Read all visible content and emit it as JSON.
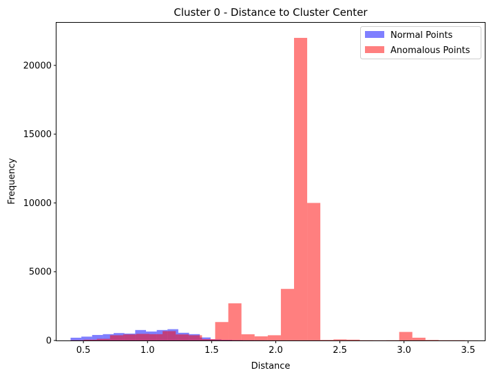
{
  "chart_data": {
    "type": "bar",
    "title": "Cluster 0 - Distance to Cluster Center",
    "xlabel": "Distance",
    "ylabel": "Frequency",
    "xlim": [
      0.29,
      3.63
    ],
    "ylim": [
      0,
      23100
    ],
    "xticks": [
      0.5,
      1.0,
      1.5,
      2.0,
      2.5,
      3.0,
      3.5
    ],
    "xtick_labels": [
      "0.5",
      "1.0",
      "1.5",
      "2.0",
      "2.5",
      "3.0",
      "3.5"
    ],
    "yticks": [
      0,
      5000,
      10000,
      15000,
      20000
    ],
    "ytick_labels": [
      "0",
      "5000",
      "10000",
      "15000",
      "20000"
    ],
    "grid": false,
    "legend_position": "top-right",
    "series": [
      {
        "name": "Normal Points",
        "color": "#0000ff",
        "opacity": 0.5,
        "bin_edges": [
          0.4,
          0.484,
          0.568,
          0.652,
          0.736,
          0.82,
          0.904,
          0.988,
          1.072,
          1.156,
          1.24,
          1.324,
          1.408,
          1.492,
          1.576,
          1.66,
          1.744,
          1.828,
          1.912,
          1.996,
          2.08,
          2.164,
          2.248,
          2.332,
          2.416,
          2.5,
          2.584,
          2.668,
          2.752,
          2.836,
          2.92,
          3.004,
          3.088,
          3.172,
          3.256,
          3.34
        ],
        "counts": [
          200,
          280,
          400,
          460,
          540,
          500,
          760,
          650,
          760,
          820,
          560,
          460,
          220,
          80,
          50,
          30,
          20,
          15,
          10,
          8,
          6,
          5,
          5,
          4,
          3,
          3,
          2,
          2,
          2,
          1,
          1,
          1,
          1,
          1,
          0
        ]
      },
      {
        "name": "Anomalous Points",
        "color": "#ff0000",
        "opacity": 0.5,
        "bin_edges": [
          0.4,
          0.5025,
          0.605,
          0.7075,
          0.81,
          0.9125,
          1.015,
          1.1175,
          1.22,
          1.3225,
          1.425,
          1.5275,
          1.63,
          1.7325,
          1.835,
          1.9375,
          2.04,
          2.1425,
          2.245,
          2.3475,
          2.45,
          2.5525,
          2.655,
          2.7575,
          2.86,
          2.9625,
          3.065,
          3.1675,
          3.27,
          3.3725,
          3.475,
          3.5775
        ],
        "counts": [
          20,
          60,
          120,
          380,
          440,
          480,
          460,
          680,
          440,
          380,
          100,
          1340,
          2700,
          450,
          300,
          380,
          3750,
          22000,
          10000,
          40,
          80,
          60,
          20,
          15,
          20,
          620,
          200,
          40,
          20,
          20,
          5
        ]
      }
    ]
  }
}
